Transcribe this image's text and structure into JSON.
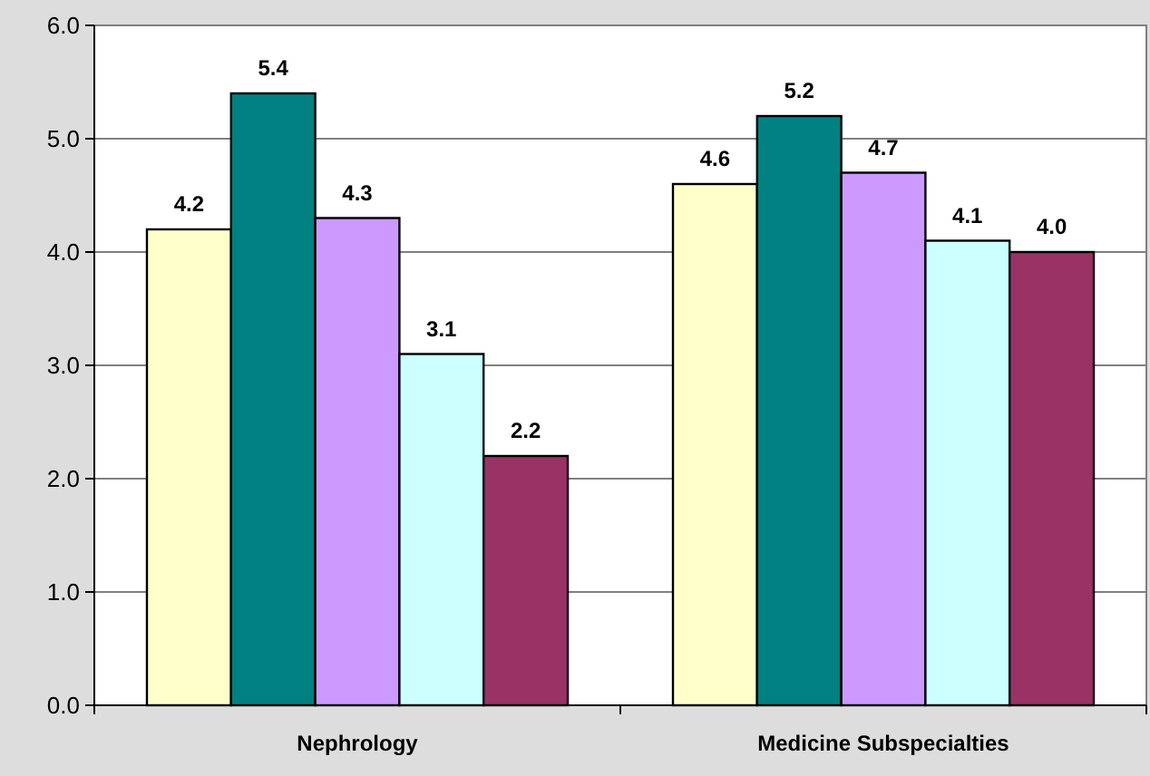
{
  "chart_data": {
    "type": "bar",
    "categories": [
      "Nephrology",
      "Medicine Subspecialties"
    ],
    "series": [
      {
        "color": "#ffffcc",
        "values": [
          4.2,
          4.6
        ],
        "value_labels": [
          "4.2",
          "4.6"
        ]
      },
      {
        "color": "#008080",
        "values": [
          5.4,
          5.2
        ],
        "value_labels": [
          "5.4",
          "5.2"
        ]
      },
      {
        "color": "#cc99ff",
        "values": [
          4.3,
          4.7
        ],
        "value_labels": [
          "4.3",
          "4.7"
        ]
      },
      {
        "color": "#ccffff",
        "values": [
          3.1,
          4.1
        ],
        "value_labels": [
          "3.1",
          "4.1"
        ]
      },
      {
        "color": "#993366",
        "values": [
          2.2,
          4.0
        ],
        "value_labels": [
          "2.2",
          "4.0"
        ]
      }
    ],
    "ylim": [
      0,
      6
    ],
    "yticks": [
      {
        "value": 0,
        "label": "0.0"
      },
      {
        "value": 1,
        "label": "1.0"
      },
      {
        "value": 2,
        "label": "2.0"
      },
      {
        "value": 3,
        "label": "3.0"
      },
      {
        "value": 4,
        "label": "4.0"
      },
      {
        "value": 5,
        "label": "5.0"
      },
      {
        "value": 6,
        "label": "6.0"
      }
    ],
    "grid": "y"
  }
}
